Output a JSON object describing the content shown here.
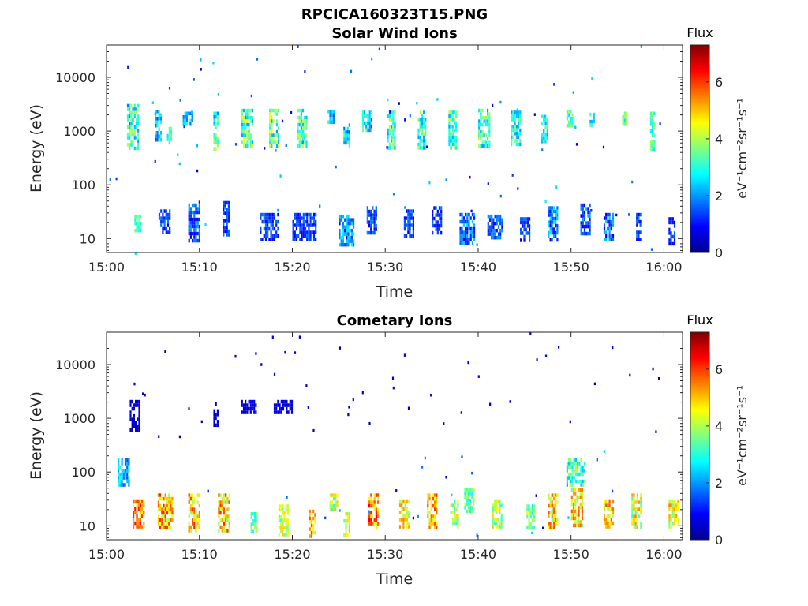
{
  "figure": {
    "title": "RPCICA160323T15.PNG"
  },
  "colors": {
    "axis": "#262626",
    "background": "#ffffff",
    "colormap": [
      "#00008f",
      "#0000ff",
      "#0080ff",
      "#00ffff",
      "#80ff80",
      "#ffff00",
      "#ff8000",
      "#ff0000",
      "#800000"
    ]
  },
  "chart_data": [
    {
      "type": "heatmap",
      "title": "Solar Wind Ions",
      "xlabel": "Time",
      "ylabel": "Energy (eV)",
      "x_ticks": [
        "15:00",
        "15:10",
        "15:20",
        "15:30",
        "15:40",
        "15:50",
        "16:00"
      ],
      "x_range_minutes": [
        0,
        62
      ],
      "y_scale": "log",
      "y_ticks": [
        {
          "value": 10,
          "label": "10"
        },
        {
          "value": 100,
          "label": "100"
        },
        {
          "value": 1000,
          "label": "1000"
        },
        {
          "value": 10000,
          "label": "10000"
        }
      ],
      "y_range": [
        5.5,
        40000
      ],
      "colorbar": {
        "title": "Flux",
        "label": "eV⁻¹cm⁻²sr⁻¹s⁻¹",
        "range": [
          0,
          7.3
        ],
        "ticks": [
          "0",
          "2",
          "4",
          "6"
        ]
      },
      "grid": false,
      "clusters": [
        {
          "t": [
            2.2,
            3.5
          ],
          "e": [
            500,
            3200
          ],
          "v": [
            1.8,
            4.2
          ]
        },
        {
          "t": [
            5.2,
            5.8
          ],
          "e": [
            700,
            2500
          ],
          "v": [
            1.5,
            3.5
          ]
        },
        {
          "t": [
            6.5,
            7.0
          ],
          "e": [
            600,
            1200
          ],
          "v": [
            2.0,
            3.8
          ]
        },
        {
          "t": [
            8.2,
            9.2
          ],
          "e": [
            1300,
            2300
          ],
          "v": [
            1.5,
            3.0
          ]
        },
        {
          "t": [
            11.5,
            12.0
          ],
          "e": [
            500,
            2300
          ],
          "v": [
            1.8,
            4.2
          ]
        },
        {
          "t": [
            14.5,
            15.8
          ],
          "e": [
            500,
            2600
          ],
          "v": [
            2.0,
            4.5
          ]
        },
        {
          "t": [
            17.5,
            18.5
          ],
          "e": [
            500,
            2600
          ],
          "v": [
            2.0,
            4.5
          ]
        },
        {
          "t": [
            20.5,
            21.5
          ],
          "e": [
            500,
            2600
          ],
          "v": [
            2.0,
            4.2
          ]
        },
        {
          "t": [
            23.8,
            24.5
          ],
          "e": [
            1500,
            2500
          ],
          "v": [
            1.5,
            3.0
          ]
        },
        {
          "t": [
            25.5,
            26.2
          ],
          "e": [
            500,
            1400
          ],
          "v": [
            1.5,
            3.5
          ]
        },
        {
          "t": [
            27.5,
            28.5
          ],
          "e": [
            1000,
            2400
          ],
          "v": [
            1.5,
            3.5
          ]
        },
        {
          "t": [
            30.2,
            31.0
          ],
          "e": [
            500,
            2400
          ],
          "v": [
            2.0,
            4.2
          ]
        },
        {
          "t": [
            33.5,
            34.3
          ],
          "e": [
            500,
            2400
          ],
          "v": [
            2.0,
            4.2
          ]
        },
        {
          "t": [
            36.8,
            37.7
          ],
          "e": [
            500,
            2400
          ],
          "v": [
            2.0,
            4.2
          ]
        },
        {
          "t": [
            40.0,
            41.2
          ],
          "e": [
            500,
            2600
          ],
          "v": [
            2.0,
            4.2
          ]
        },
        {
          "t": [
            43.5,
            44.5
          ],
          "e": [
            600,
            2400
          ],
          "v": [
            2.0,
            3.8
          ]
        },
        {
          "t": [
            46.8,
            47.5
          ],
          "e": [
            600,
            2000
          ],
          "v": [
            2.0,
            3.5
          ]
        },
        {
          "t": [
            49.5,
            50.2
          ],
          "e": [
            1200,
            2500
          ],
          "v": [
            2.5,
            4.0
          ]
        },
        {
          "t": [
            52.0,
            52.5
          ],
          "e": [
            1200,
            2200
          ],
          "v": [
            2.0,
            3.5
          ]
        },
        {
          "t": [
            55.5,
            56.0
          ],
          "e": [
            1300,
            2300
          ],
          "v": [
            2.5,
            4.0
          ]
        },
        {
          "t": [
            58.5,
            59.0
          ],
          "e": [
            500,
            2300
          ],
          "v": [
            2.5,
            4.0
          ]
        },
        {
          "t": [
            3.0,
            3.6
          ],
          "e": [
            14,
            28
          ],
          "v": [
            2.5,
            4.0
          ]
        },
        {
          "t": [
            5.6,
            6.8
          ],
          "e": [
            13,
            35
          ],
          "v": [
            0.8,
            1.8
          ]
        },
        {
          "t": [
            8.8,
            10.0
          ],
          "e": [
            9,
            45
          ],
          "v": [
            0.8,
            2.2
          ]
        },
        {
          "t": [
            12.5,
            13.2
          ],
          "e": [
            12,
            50
          ],
          "v": [
            0.8,
            2.0
          ]
        },
        {
          "t": [
            16.5,
            18.5
          ],
          "e": [
            10,
            30
          ],
          "v": [
            0.8,
            1.8
          ]
        },
        {
          "t": [
            20.0,
            22.5
          ],
          "e": [
            10,
            30
          ],
          "v": [
            0.8,
            1.8
          ]
        },
        {
          "t": [
            25.0,
            26.5
          ],
          "e": [
            8,
            28
          ],
          "v": [
            1.0,
            2.8
          ]
        },
        {
          "t": [
            28.0,
            29.0
          ],
          "e": [
            12,
            40
          ],
          "v": [
            0.8,
            2.0
          ]
        },
        {
          "t": [
            32.0,
            33.0
          ],
          "e": [
            12,
            35
          ],
          "v": [
            0.8,
            2.0
          ]
        },
        {
          "t": [
            35.0,
            36.0
          ],
          "e": [
            12,
            40
          ],
          "v": [
            0.8,
            2.0
          ]
        },
        {
          "t": [
            38.0,
            39.5
          ],
          "e": [
            8,
            30
          ],
          "v": [
            0.8,
            2.5
          ]
        },
        {
          "t": [
            41.0,
            42.5
          ],
          "e": [
            10,
            28
          ],
          "v": [
            0.8,
            2.2
          ]
        },
        {
          "t": [
            44.5,
            45.5
          ],
          "e": [
            9,
            25
          ],
          "v": [
            0.8,
            1.8
          ]
        },
        {
          "t": [
            47.5,
            48.5
          ],
          "e": [
            10,
            40
          ],
          "v": [
            0.8,
            2.8
          ]
        },
        {
          "t": [
            51.0,
            52.0
          ],
          "e": [
            12,
            45
          ],
          "v": [
            0.8,
            2.2
          ]
        },
        {
          "t": [
            53.5,
            54.5
          ],
          "e": [
            10,
            30
          ],
          "v": [
            0.8,
            2.5
          ]
        },
        {
          "t": [
            57.0,
            57.5
          ],
          "e": [
            10,
            30
          ],
          "v": [
            0.8,
            2.0
          ]
        },
        {
          "t": [
            60.5,
            61.2
          ],
          "e": [
            8,
            25
          ],
          "v": [
            0.8,
            1.8
          ]
        }
      ],
      "scatter_density": 0.6
    },
    {
      "type": "heatmap",
      "title": "Cometary Ions",
      "xlabel": "Time",
      "ylabel": "Energy (eV)",
      "x_ticks": [
        "15:00",
        "15:10",
        "15:20",
        "15:30",
        "15:40",
        "15:50",
        "16:00"
      ],
      "x_range_minutes": [
        0,
        62
      ],
      "y_scale": "log",
      "y_ticks": [
        {
          "value": 10,
          "label": "10"
        },
        {
          "value": 100,
          "label": "100"
        },
        {
          "value": 1000,
          "label": "1000"
        },
        {
          "value": 10000,
          "label": "10000"
        }
      ],
      "y_range": [
        5.5,
        40000
      ],
      "colorbar": {
        "title": "Flux",
        "label": "eV⁻¹cm⁻²sr⁻¹s⁻¹",
        "range": [
          0,
          7.3
        ],
        "ticks": [
          "0",
          "2",
          "4",
          "6"
        ]
      },
      "grid": false,
      "clusters": [
        {
          "t": [
            2.5,
            3.5
          ],
          "e": [
            600,
            2200
          ],
          "v": [
            0.3,
            0.8
          ]
        },
        {
          "t": [
            11.5,
            12.0
          ],
          "e": [
            700,
            2000
          ],
          "v": [
            0.3,
            0.8
          ]
        },
        {
          "t": [
            14.5,
            16.0
          ],
          "e": [
            1200,
            2200
          ],
          "v": [
            0.3,
            0.8
          ]
        },
        {
          "t": [
            18.0,
            20.0
          ],
          "e": [
            1200,
            2200
          ],
          "v": [
            0.3,
            0.8
          ]
        },
        {
          "t": [
            1.2,
            2.5
          ],
          "e": [
            60,
            180
          ],
          "v": [
            1.5,
            3.0
          ]
        },
        {
          "t": [
            2.8,
            4.0
          ],
          "e": [
            10,
            30
          ],
          "v": [
            4.5,
            6.5
          ]
        },
        {
          "t": [
            5.5,
            7.0
          ],
          "e": [
            9,
            40
          ],
          "v": [
            4.0,
            6.2
          ]
        },
        {
          "t": [
            8.8,
            10.0
          ],
          "e": [
            8,
            40
          ],
          "v": [
            3.5,
            6.2
          ]
        },
        {
          "t": [
            12.0,
            13.2
          ],
          "e": [
            8,
            40
          ],
          "v": [
            3.5,
            6.2
          ]
        },
        {
          "t": [
            15.5,
            16.2
          ],
          "e": [
            8,
            18
          ],
          "v": [
            2.5,
            4.0
          ]
        },
        {
          "t": [
            18.5,
            19.5
          ],
          "e": [
            7,
            25
          ],
          "v": [
            3.0,
            5.0
          ]
        },
        {
          "t": [
            21.8,
            22.5
          ],
          "e": [
            6,
            20
          ],
          "v": [
            4.0,
            6.0
          ]
        },
        {
          "t": [
            24.0,
            24.8
          ],
          "e": [
            20,
            40
          ],
          "v": [
            3.0,
            5.0
          ]
        },
        {
          "t": [
            25.5,
            26.2
          ],
          "e": [
            7,
            18
          ],
          "v": [
            3.5,
            5.0
          ]
        },
        {
          "t": [
            28.2,
            29.2
          ],
          "e": [
            10,
            40
          ],
          "v": [
            4.0,
            6.5
          ]
        },
        {
          "t": [
            31.5,
            32.5
          ],
          "e": [
            10,
            30
          ],
          "v": [
            3.5,
            5.5
          ]
        },
        {
          "t": [
            34.5,
            35.5
          ],
          "e": [
            10,
            40
          ],
          "v": [
            4.0,
            6.0
          ]
        },
        {
          "t": [
            37.0,
            37.8
          ],
          "e": [
            10,
            30
          ],
          "v": [
            3.0,
            5.0
          ]
        },
        {
          "t": [
            38.5,
            39.5
          ],
          "e": [
            20,
            50
          ],
          "v": [
            2.5,
            4.5
          ]
        },
        {
          "t": [
            41.5,
            42.5
          ],
          "e": [
            10,
            30
          ],
          "v": [
            3.0,
            5.0
          ]
        },
        {
          "t": [
            45.2,
            46.0
          ],
          "e": [
            9,
            25
          ],
          "v": [
            2.5,
            4.5
          ]
        },
        {
          "t": [
            47.5,
            48.5
          ],
          "e": [
            9,
            40
          ],
          "v": [
            3.5,
            6.0
          ]
        },
        {
          "t": [
            50.0,
            51.2
          ],
          "e": [
            10,
            50
          ],
          "v": [
            3.5,
            6.0
          ]
        },
        {
          "t": [
            49.5,
            51.5
          ],
          "e": [
            60,
            180
          ],
          "v": [
            2.0,
            4.0
          ]
        },
        {
          "t": [
            53.5,
            54.5
          ],
          "e": [
            10,
            30
          ],
          "v": [
            4.0,
            6.0
          ]
        },
        {
          "t": [
            56.5,
            57.5
          ],
          "e": [
            10,
            40
          ],
          "v": [
            3.0,
            5.5
          ]
        },
        {
          "t": [
            60.5,
            61.5
          ],
          "e": [
            10,
            30
          ],
          "v": [
            3.5,
            5.5
          ]
        }
      ],
      "scatter_density": 0.5
    }
  ]
}
